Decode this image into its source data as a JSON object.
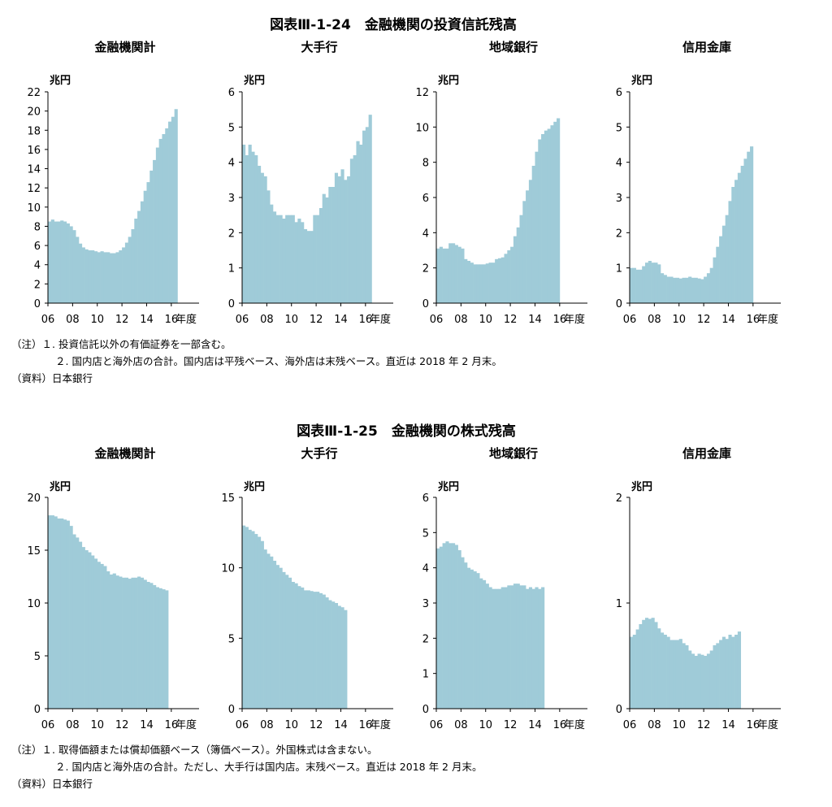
{
  "colors": {
    "bar": "#9fcbd8",
    "axis": "#000000",
    "text": "#000000"
  },
  "figures": [
    {
      "title": "図表Ⅲ-1-24　金融機関の投資信託残高",
      "notes": [
        "（注）１. 投資信託以外の有価証券を一部含む。",
        "２. 国内店と海外店の合計。国内店は平残ベース、海外店は末残ベース。直近は 2018 年 2 月末。",
        "（資料）日本銀行"
      ]
    },
    {
      "title": "図表Ⅲ-1-25　金融機関の株式残高",
      "notes": [
        "（注）１. 取得価額または償却価額ベース（簿価ベース）。外国株式は含まない。",
        "２. 国内店と海外店の合計。ただし、大手行は国内店。末残ベース。直近は 2018 年 2 月末。",
        "（資料）日本銀行"
      ]
    }
  ],
  "chart_data": [
    {
      "figure": 0,
      "type": "bar",
      "title": "金融機関計",
      "ylabel": "兆円",
      "xlabel": "年度",
      "ylim": [
        0,
        22
      ],
      "yticks": [
        0,
        2,
        4,
        6,
        8,
        10,
        12,
        14,
        16,
        18,
        20,
        22
      ],
      "xticks": [
        "06",
        "08",
        "10",
        "12",
        "14",
        "16"
      ],
      "x_start": 2006,
      "x_step": 0.25,
      "values": [
        8.5,
        8.7,
        8.5,
        8.5,
        8.6,
        8.5,
        8.3,
        8.0,
        7.6,
        6.9,
        6.2,
        5.8,
        5.6,
        5.5,
        5.5,
        5.4,
        5.3,
        5.4,
        5.3,
        5.3,
        5.2,
        5.2,
        5.3,
        5.5,
        5.8,
        6.3,
        6.9,
        7.7,
        8.8,
        9.6,
        10.6,
        11.7,
        12.6,
        13.8,
        14.9,
        16.2,
        17.1,
        17.6,
        18.2,
        18.9,
        19.4,
        20.2
      ]
    },
    {
      "figure": 0,
      "type": "bar",
      "title": "大手行",
      "ylabel": "兆円",
      "xlabel": "年度",
      "ylim": [
        0,
        6
      ],
      "yticks": [
        0,
        1,
        2,
        3,
        4,
        5,
        6
      ],
      "xticks": [
        "06",
        "08",
        "10",
        "12",
        "14",
        "16"
      ],
      "x_start": 2006,
      "x_step": 0.25,
      "values": [
        4.5,
        4.2,
        4.5,
        4.3,
        4.2,
        3.9,
        3.7,
        3.6,
        3.2,
        2.8,
        2.6,
        2.5,
        2.5,
        2.4,
        2.5,
        2.5,
        2.5,
        2.3,
        2.4,
        2.3,
        2.1,
        2.05,
        2.05,
        2.5,
        2.5,
        2.7,
        3.1,
        3.0,
        3.3,
        3.3,
        3.7,
        3.6,
        3.8,
        3.5,
        3.6,
        4.1,
        4.2,
        4.6,
        4.5,
        4.9,
        5.0,
        5.35
      ]
    },
    {
      "figure": 0,
      "type": "bar",
      "title": "地域銀行",
      "ylabel": "兆円",
      "xlabel": "年度",
      "ylim": [
        0,
        12
      ],
      "yticks": [
        0,
        2,
        4,
        6,
        8,
        10,
        12
      ],
      "xticks": [
        "06",
        "08",
        "10",
        "12",
        "14",
        "16"
      ],
      "x_start": 2006,
      "x_step": 0.25,
      "values": [
        3.1,
        3.2,
        3.1,
        3.1,
        3.4,
        3.4,
        3.3,
        3.2,
        3.1,
        2.5,
        2.4,
        2.3,
        2.2,
        2.2,
        2.2,
        2.2,
        2.25,
        2.3,
        2.3,
        2.5,
        2.55,
        2.6,
        2.8,
        3.0,
        3.2,
        3.8,
        4.3,
        5.0,
        5.8,
        6.4,
        7.0,
        7.8,
        8.6,
        9.3,
        9.6,
        9.8,
        9.9,
        10.1,
        10.3,
        10.5
      ]
    },
    {
      "figure": 0,
      "type": "bar",
      "title": "信用金庫",
      "ylabel": "兆円",
      "xlabel": "年度",
      "ylim": [
        0,
        6
      ],
      "yticks": [
        0,
        1,
        2,
        3,
        4,
        5,
        6
      ],
      "xticks": [
        "06",
        "08",
        "10",
        "12",
        "14",
        "16"
      ],
      "x_start": 2006,
      "x_step": 0.25,
      "values": [
        1.0,
        1.0,
        0.95,
        0.95,
        1.05,
        1.15,
        1.2,
        1.15,
        1.15,
        1.1,
        0.85,
        0.8,
        0.75,
        0.75,
        0.72,
        0.72,
        0.7,
        0.72,
        0.72,
        0.75,
        0.72,
        0.72,
        0.7,
        0.68,
        0.75,
        0.85,
        1.0,
        1.3,
        1.6,
        1.9,
        2.2,
        2.5,
        2.9,
        3.3,
        3.5,
        3.7,
        3.9,
        4.1,
        4.3,
        4.45
      ]
    },
    {
      "figure": 1,
      "type": "bar",
      "title": "金融機関計",
      "ylabel": "兆円",
      "xlabel": "年度",
      "ylim": [
        0,
        20
      ],
      "yticks": [
        0,
        5,
        10,
        15,
        20
      ],
      "xticks": [
        "06",
        "08",
        "10",
        "12",
        "14",
        "16"
      ],
      "x_start": 2006,
      "x_step": 0.25,
      "values": [
        18.3,
        18.3,
        18.2,
        18.0,
        18.0,
        17.9,
        17.8,
        17.3,
        16.5,
        16.2,
        15.8,
        15.3,
        15.0,
        14.8,
        14.5,
        14.2,
        13.9,
        13.7,
        13.5,
        13.0,
        12.7,
        12.8,
        12.6,
        12.5,
        12.4,
        12.4,
        12.3,
        12.4,
        12.4,
        12.5,
        12.4,
        12.2,
        12.0,
        11.9,
        11.7,
        11.5,
        11.4,
        11.3,
        11.2
      ]
    },
    {
      "figure": 1,
      "type": "bar",
      "title": "大手行",
      "ylabel": "兆円",
      "xlabel": "年度",
      "ylim": [
        0,
        15
      ],
      "yticks": [
        0,
        5,
        10,
        15
      ],
      "xticks": [
        "06",
        "08",
        "10",
        "12",
        "14",
        "16"
      ],
      "x_start": 2006,
      "x_step": 0.25,
      "values": [
        13.0,
        12.9,
        12.7,
        12.6,
        12.4,
        12.2,
        11.9,
        11.3,
        11.0,
        10.8,
        10.5,
        10.2,
        10.0,
        9.7,
        9.5,
        9.3,
        9.0,
        8.9,
        8.7,
        8.6,
        8.4,
        8.4,
        8.35,
        8.3,
        8.3,
        8.2,
        8.1,
        7.9,
        7.7,
        7.6,
        7.5,
        7.3,
        7.2,
        7.0
      ]
    },
    {
      "figure": 1,
      "type": "bar",
      "title": "地域銀行",
      "ylabel": "兆円",
      "xlabel": "年度",
      "ylim": [
        0,
        6
      ],
      "yticks": [
        0,
        1,
        2,
        3,
        4,
        5,
        6
      ],
      "xticks": [
        "06",
        "08",
        "10",
        "12",
        "14",
        "16"
      ],
      "x_start": 2006,
      "x_step": 0.25,
      "values": [
        4.55,
        4.6,
        4.7,
        4.75,
        4.7,
        4.7,
        4.65,
        4.5,
        4.3,
        4.15,
        4.0,
        3.95,
        3.9,
        3.85,
        3.7,
        3.65,
        3.55,
        3.45,
        3.4,
        3.4,
        3.4,
        3.45,
        3.45,
        3.5,
        3.5,
        3.55,
        3.55,
        3.5,
        3.5,
        3.4,
        3.45,
        3.4,
        3.45,
        3.4,
        3.45
      ]
    },
    {
      "figure": 1,
      "type": "bar",
      "title": "信用金庫",
      "ylabel": "兆円",
      "xlabel": "年度",
      "ylim": [
        0,
        2
      ],
      "yticks": [
        0,
        1,
        2
      ],
      "xticks": [
        "06",
        "08",
        "10",
        "12",
        "14",
        "16"
      ],
      "x_start": 2006,
      "x_step": 0.25,
      "values": [
        0.68,
        0.7,
        0.75,
        0.8,
        0.84,
        0.86,
        0.85,
        0.86,
        0.82,
        0.76,
        0.72,
        0.7,
        0.68,
        0.65,
        0.65,
        0.65,
        0.66,
        0.62,
        0.6,
        0.55,
        0.52,
        0.5,
        0.52,
        0.51,
        0.5,
        0.52,
        0.55,
        0.6,
        0.62,
        0.65,
        0.68,
        0.66,
        0.7,
        0.68,
        0.7,
        0.73
      ]
    }
  ]
}
